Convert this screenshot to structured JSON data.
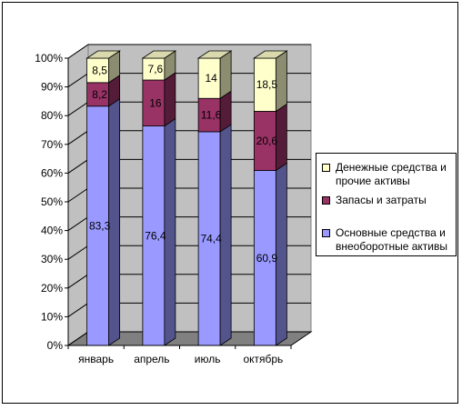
{
  "chart_data": {
    "type": "bar",
    "stacked": true,
    "percent_stacked": true,
    "three_d": true,
    "categories": [
      "январь",
      "апрель",
      "июль",
      "октябрь"
    ],
    "series": [
      {
        "name": "Основные средства и внеоборотные активы",
        "values": [
          83.3,
          76.4,
          74.4,
          60.9
        ],
        "labels": [
          "83,3",
          "76,4",
          "74,4",
          "60,9"
        ],
        "color": "#9999ff"
      },
      {
        "name": "Запасы и затраты",
        "values": [
          8.2,
          16,
          11.6,
          20.6
        ],
        "labels": [
          "8,2",
          "16",
          "11,6",
          "20,6"
        ],
        "color": "#993366"
      },
      {
        "name": "Денежные средства и прочие активы",
        "values": [
          8.5,
          7.6,
          14,
          18.5
        ],
        "labels": [
          "8,5",
          "7,6",
          "14",
          "18,5"
        ],
        "color": "#ffffcc"
      }
    ],
    "yticks": [
      "0%",
      "10%",
      "20%",
      "30%",
      "40%",
      "50%",
      "60%",
      "70%",
      "80%",
      "90%",
      "100%"
    ],
    "ylim": [
      0,
      100
    ],
    "grid": true,
    "legend_position": "right",
    "colors": {
      "wall": "#c0c0c0",
      "gridline": "#000000",
      "axis": "#000000"
    }
  },
  "legend": {
    "items": [
      {
        "label": "Денежные средства и прочие активы",
        "color": "#ffffcc"
      },
      {
        "label": "Запасы и затраты",
        "color": "#993366"
      },
      {
        "label": "Основные средства и внеоборотные активы",
        "color": "#9999ff"
      }
    ]
  }
}
